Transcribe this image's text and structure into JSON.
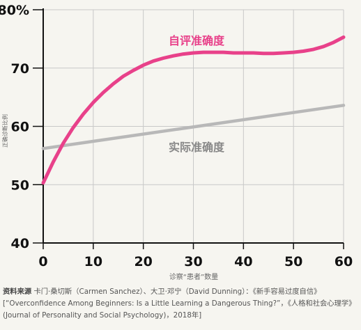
{
  "chart_data": {
    "type": "line",
    "title": "",
    "xlabel": "诊察“患者”数量",
    "ylabel": "正确诊断比例",
    "xlim": [
      0,
      60
    ],
    "ylim": [
      40,
      80
    ],
    "xticks": [
      "0",
      "10",
      "20",
      "30",
      "40",
      "50",
      "60"
    ],
    "yticks": [
      "40",
      "50",
      "60",
      "70",
      "80%"
    ],
    "grid": true,
    "series": [
      {
        "name": "自评准确度",
        "color": "#e8418a",
        "x": [
          0,
          2,
          4,
          6,
          8,
          10,
          12,
          14,
          16,
          18,
          20,
          22,
          24,
          26,
          28,
          30,
          32,
          34,
          36,
          38,
          40,
          42,
          44,
          46,
          48,
          50,
          52,
          54,
          56,
          58,
          60
        ],
        "y": [
          50.3,
          53.9,
          57.1,
          59.8,
          62.1,
          64.1,
          65.8,
          67.3,
          68.6,
          69.6,
          70.5,
          71.2,
          71.7,
          72.1,
          72.4,
          72.6,
          72.7,
          72.7,
          72.7,
          72.6,
          72.6,
          72.6,
          72.5,
          72.5,
          72.6,
          72.7,
          72.9,
          73.2,
          73.7,
          74.4,
          75.3
        ]
      },
      {
        "name": "实际准确度",
        "color": "#b8b8b8",
        "x": [
          0,
          60
        ],
        "y": [
          56.2,
          63.6
        ]
      }
    ]
  },
  "source": {
    "label": "资料来源",
    "text": " 卡门·桑切斯（Carmen Sanchez）、大卫·邓宁（David Dunning）：《新手容易过度自信》[“Overconfidence Among Beginners: Is a Little Learning a Dangerous Thing?”，《人格和社会心理学》(Journal of Personality and Social Psychology)，2018年]"
  }
}
